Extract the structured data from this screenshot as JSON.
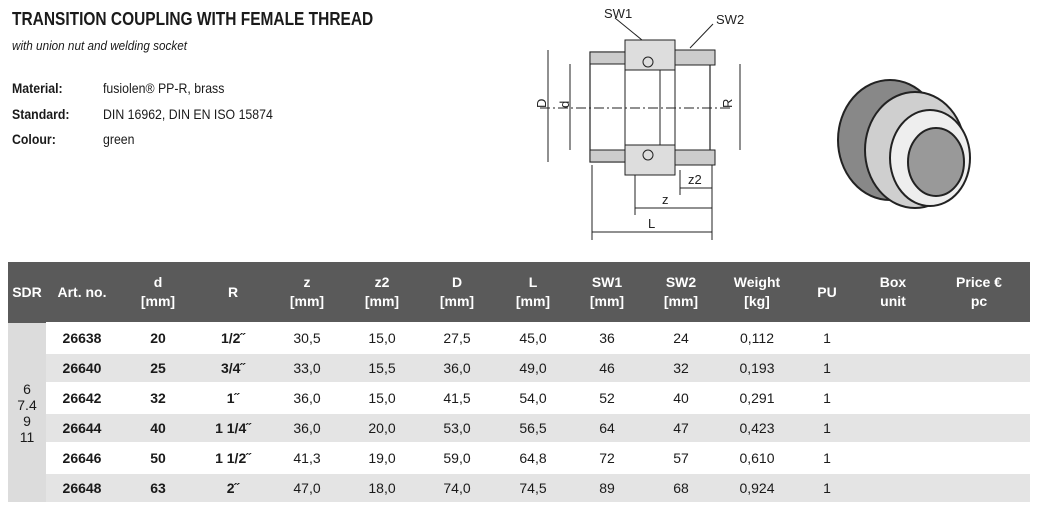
{
  "header": {
    "title": "TRANSITION COUPLING WITH FEMALE THREAD",
    "subtitle": "with union nut and welding socket"
  },
  "properties": [
    {
      "label": "Material:",
      "value": "fusiolen® PP-R, brass"
    },
    {
      "label": "Standard:",
      "value": "DIN 16962, DIN EN ISO 15874"
    },
    {
      "label": "Colour:",
      "value": "green"
    }
  ],
  "diagram": {
    "sw1": "SW1",
    "sw2": "SW2",
    "D": "D",
    "d": "d",
    "R": "R",
    "z2": "z2",
    "z": "z",
    "L": "L"
  },
  "table": {
    "columns": [
      [
        "SDR"
      ],
      [
        "Art. no."
      ],
      [
        "d",
        "[mm]"
      ],
      [
        "R"
      ],
      [
        "z",
        "[mm]"
      ],
      [
        "z2",
        "[mm]"
      ],
      [
        "D",
        "[mm]"
      ],
      [
        "L",
        "[mm]"
      ],
      [
        "SW1",
        "[mm]"
      ],
      [
        "SW2",
        "[mm]"
      ],
      [
        "Weight",
        "[kg]"
      ],
      [
        "PU"
      ],
      [
        "Box",
        "unit"
      ],
      [
        "Price €",
        "pc"
      ]
    ],
    "sdr": [
      "6",
      "7.4",
      "9",
      "11"
    ],
    "rows": [
      [
        "26638",
        "20",
        "1/2˝",
        "30,5",
        "15,0",
        "27,5",
        "45,0",
        "36",
        "24",
        "0,112",
        "1"
      ],
      [
        "26640",
        "25",
        "3/4˝",
        "33,0",
        "15,5",
        "36,0",
        "49,0",
        "46",
        "32",
        "0,193",
        "1"
      ],
      [
        "26642",
        "32",
        "1˝",
        "36,0",
        "15,0",
        "41,5",
        "54,0",
        "52",
        "40",
        "0,291",
        "1"
      ],
      [
        "26644",
        "40",
        "1 1/4˝",
        "36,0",
        "20,0",
        "53,0",
        "56,5",
        "64",
        "47",
        "0,423",
        "1"
      ],
      [
        "26646",
        "50",
        "1 1/2˝",
        "41,3",
        "19,0",
        "59,0",
        "64,8",
        "72",
        "57",
        "0,610",
        "1"
      ],
      [
        "26648",
        "63",
        "2˝",
        "47,0",
        "18,0",
        "74,0",
        "74,5",
        "89",
        "68",
        "0,924",
        "1"
      ]
    ]
  }
}
